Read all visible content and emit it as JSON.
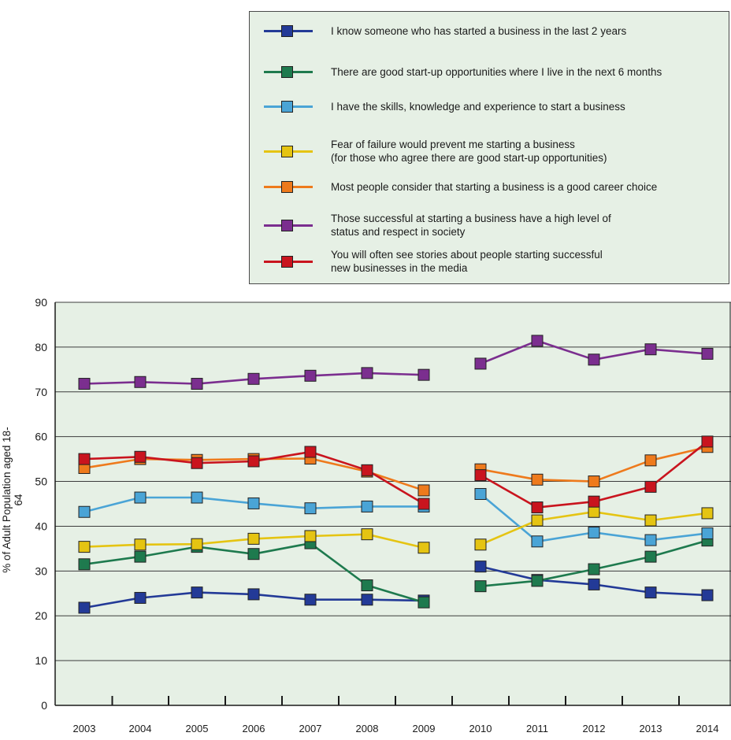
{
  "legend": {
    "items": [
      {
        "label": "I know someone who has started a business in the last 2 years",
        "color": "#233a97"
      },
      {
        "label": "There are good start-up opportunities where I live in the next 6 months",
        "color": "#1e7a4e"
      },
      {
        "label": "I have the skills, knowledge and experience to start a business",
        "color": "#4aa4d6"
      },
      {
        "label": "Fear of failure would prevent me starting a business\n(for those who agree there are good start-up opportunities)",
        "color": "#e5c412"
      },
      {
        "label": "Most people consider that starting a business is a good career choice",
        "color": "#ee7a1c"
      },
      {
        "label": "Those successful at starting a business have a high level of\nstatus and respect in society",
        "color": "#7b2e8f"
      },
      {
        "label": "You will often see stories about people starting successful\nnew businesses in the media",
        "color": "#c9141e"
      }
    ]
  },
  "chart_data": {
    "type": "line",
    "ylabel": "% of Adult Population aged 18-64",
    "xlabel": "",
    "ylim": [
      0,
      90
    ],
    "yticks": [
      0,
      10,
      20,
      30,
      40,
      50,
      60,
      70,
      80,
      90
    ],
    "x": [
      "2003",
      "2004",
      "2005",
      "2006",
      "2007",
      "2008",
      "2009",
      "2010",
      "2011",
      "2012",
      "2013",
      "2014"
    ],
    "background": "#e6f0e5",
    "grid": "horizontal",
    "legend_position": "top-right",
    "series": [
      {
        "name": "I know someone who has started a business in the last 2 years",
        "color": "#233a97",
        "values": [
          21.8,
          24.0,
          25.2,
          24.8,
          23.6,
          23.6,
          23.4,
          31.0,
          28.0,
          27.0,
          25.2,
          24.6
        ]
      },
      {
        "name": "There are good start-up opportunities where I live in the next 6 months",
        "color": "#1e7a4e",
        "values": [
          31.5,
          33.2,
          35.4,
          33.8,
          36.2,
          26.8,
          23.0,
          26.6,
          27.8,
          30.4,
          33.2,
          36.8
        ]
      },
      {
        "name": "I have the skills, knowledge and experience to start a business",
        "color": "#4aa4d6",
        "values": [
          43.2,
          46.4,
          46.4,
          45.1,
          44.0,
          44.4,
          44.4,
          47.2,
          36.6,
          38.6,
          36.9,
          38.4
        ]
      },
      {
        "name": "Fear of failure would prevent me starting a business (for those who agree there are good start-up opportunities)",
        "color": "#e5c412",
        "values": [
          35.4,
          35.9,
          36.0,
          37.2,
          37.8,
          38.2,
          35.2,
          35.9,
          41.3,
          43.2,
          41.3,
          42.9
        ]
      },
      {
        "name": "Most people consider that starting a business is a good career choice",
        "color": "#ee7a1c",
        "values": [
          53.0,
          55.0,
          54.8,
          55.0,
          55.1,
          52.2,
          48.0,
          52.7,
          50.4,
          50.0,
          54.7,
          57.7
        ]
      },
      {
        "name": "Those successful at starting a business have a high level of status and respect in society",
        "color": "#7b2e8f",
        "values": [
          71.8,
          72.2,
          71.8,
          72.9,
          73.6,
          74.2,
          73.8,
          76.3,
          81.4,
          77.2,
          79.5,
          78.5
        ]
      },
      {
        "name": "You will often see stories about people starting successful new businesses in the media",
        "color": "#c9141e",
        "values": [
          55.0,
          55.5,
          54.1,
          54.5,
          56.6,
          52.5,
          45.0,
          51.4,
          44.2,
          45.5,
          48.8,
          58.9
        ]
      }
    ]
  }
}
